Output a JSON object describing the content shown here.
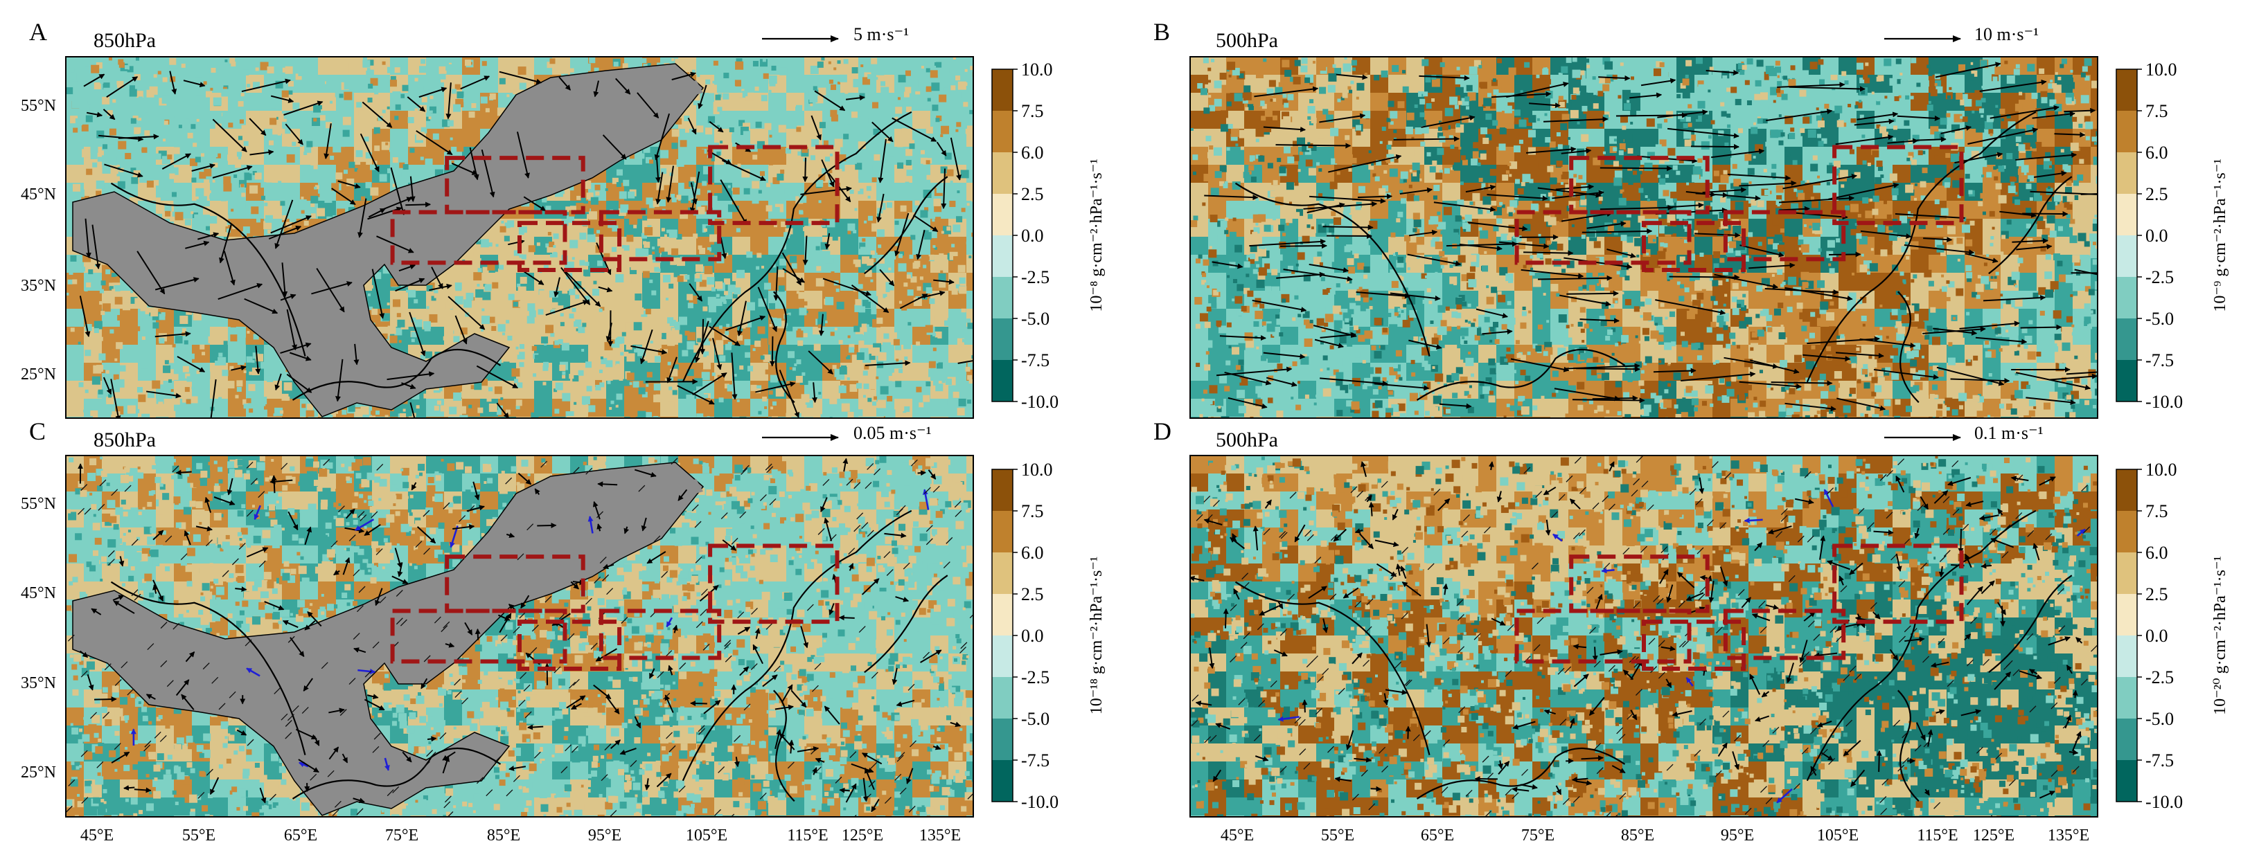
{
  "figure": {
    "description_free": true,
    "panels": [
      {
        "id": "A",
        "letter": "A",
        "level": "850hPa",
        "ref_label": "5 m·s⁻¹",
        "colorbar_exp": "10⁻⁸ g·cm⁻²·hPa⁻¹·s⁻¹",
        "colorbar_ticks": [
          "10.0",
          "7.5",
          "6.0",
          "2.5",
          "0.0",
          "-2.5",
          "-5.0",
          "-7.5",
          "-10.0"
        ],
        "lat_labels": [
          "55°N",
          "45°N",
          "35°N",
          "25°N"
        ],
        "lon_labels": [],
        "seed": 11,
        "mask": true,
        "style": "A"
      },
      {
        "id": "B",
        "letter": "B",
        "level": "500hPa",
        "ref_label": "10 m·s⁻¹",
        "colorbar_exp": "10⁻⁹ g·cm⁻²·hPa⁻¹·s⁻¹",
        "colorbar_ticks": [
          "10.0",
          "7.5",
          "6.0",
          "2.5",
          "0.0",
          "-2.5",
          "-5.0",
          "-7.5",
          "-10.0"
        ],
        "lat_labels": [],
        "lon_labels": [],
        "seed": 23,
        "mask": false,
        "style": "B"
      },
      {
        "id": "C",
        "letter": "C",
        "level": "850hPa",
        "ref_label": "0.05 m·s⁻¹",
        "colorbar_exp": "10⁻¹⁸ g·cm⁻²·hPa⁻¹·s⁻¹",
        "colorbar_ticks": [
          "10.0",
          "7.5",
          "6.0",
          "2.5",
          "0.0",
          "-2.5",
          "-5.0",
          "-7.5",
          "-10.0"
        ],
        "lat_labels": [
          "55°N",
          "45°N",
          "35°N",
          "25°N"
        ],
        "lon_labels": [
          "45°E",
          "55°E",
          "65°E",
          "75°E",
          "85°E",
          "95°E",
          "105°E",
          "115°E",
          "125°E",
          "135°E"
        ],
        "seed": 37,
        "mask": true,
        "style": "C"
      },
      {
        "id": "D",
        "letter": "D",
        "level": "500hPa",
        "ref_label": "0.1 m·s⁻¹",
        "colorbar_exp": "10⁻²⁰ g·cm⁻²·hPa⁻¹·s⁻¹",
        "colorbar_ticks": [
          "10.0",
          "7.5",
          "6.0",
          "2.5",
          "0.0",
          "-2.5",
          "-5.0",
          "-7.5",
          "-10.0"
        ],
        "lat_labels": [],
        "lon_labels": [
          "45°E",
          "55°E",
          "65°E",
          "75°E",
          "85°E",
          "95°E",
          "105°E",
          "115°E",
          "125°E",
          "135°E"
        ],
        "seed": 53,
        "mask": false,
        "style": "D"
      }
    ],
    "colors": {
      "levels": [
        "#8c510a",
        "#bf812d",
        "#dfc27d",
        "#f6e8c3",
        "#c7eae5",
        "#80cdc1",
        "#35978f",
        "#01665e"
      ],
      "fill_brown_dark": "#a25d14",
      "fill_brown": "#c98a3a",
      "fill_tan": "#dcc58a",
      "fill_teal_light": "#7ed1c4",
      "fill_teal": "#3aa69c",
      "fill_teal_dark": "#1b7c73",
      "mask": "#8c8c8c",
      "box": "#a01616",
      "arrow": "#000000",
      "arrow_sig": "#1f1fd6"
    }
  }
}
